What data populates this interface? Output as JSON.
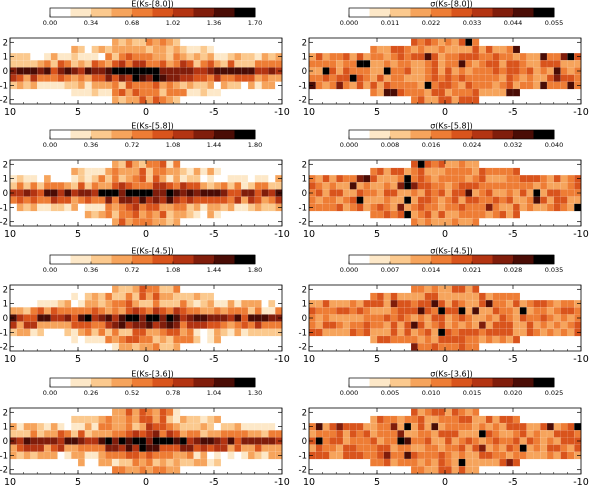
{
  "figure": {
    "background": "#ffffff",
    "colormap": [
      "#ffffff",
      "#fde8c8",
      "#fbc98e",
      "#f6a45c",
      "#ee7d35",
      "#d9541c",
      "#b33412",
      "#801d0b",
      "#4a0c05",
      "#000000"
    ]
  },
  "chart_data": [
    {
      "type": "heatmap",
      "panel": "left-1",
      "title": "E(Ks-[8.0])",
      "colorbar_ticks": [
        "0.00",
        "0.34",
        "0.68",
        "1.02",
        "1.36",
        "1.70"
      ],
      "vmin": 0.0,
      "vmax": 1.7,
      "xlim": [
        10,
        -10
      ],
      "ylim": [
        -2.3,
        2.3
      ],
      "x_ticks": [
        "10",
        "5",
        "0",
        "-5",
        "-10"
      ],
      "y_ticks": [
        "2",
        "1",
        "0",
        "-1",
        "-2"
      ],
      "xlabel": "",
      "ylabel": "",
      "grid": true,
      "kind": "extinction"
    },
    {
      "type": "heatmap",
      "panel": "right-1",
      "title": "σ(Ks-[8.0])",
      "colorbar_ticks": [
        "0.000",
        "0.011",
        "0.022",
        "0.033",
        "0.044",
        "0.055"
      ],
      "vmin": 0.0,
      "vmax": 0.055,
      "xlim": [
        10,
        -10
      ],
      "ylim": [
        -2.3,
        2.3
      ],
      "x_ticks": [
        "10",
        "5",
        "0",
        "-5",
        "-10"
      ],
      "y_ticks": [
        "2",
        "1",
        "0",
        "-1",
        "-2"
      ],
      "xlabel": "",
      "ylabel": "",
      "grid": true,
      "kind": "sigma"
    },
    {
      "type": "heatmap",
      "panel": "left-2",
      "title": "E(Ks-[5.8])",
      "colorbar_ticks": [
        "0.00",
        "0.36",
        "0.72",
        "1.08",
        "1.44",
        "1.80"
      ],
      "vmin": 0.0,
      "vmax": 1.8,
      "xlim": [
        10,
        -10
      ],
      "ylim": [
        -2.3,
        2.3
      ],
      "x_ticks": [
        "10",
        "5",
        "0",
        "-5",
        "-10"
      ],
      "y_ticks": [
        "2",
        "1",
        "0",
        "-1",
        "-2"
      ],
      "xlabel": "",
      "ylabel": "",
      "grid": true,
      "kind": "extinction"
    },
    {
      "type": "heatmap",
      "panel": "right-2",
      "title": "σ(Ks-[5.8])",
      "colorbar_ticks": [
        "0.000",
        "0.008",
        "0.016",
        "0.024",
        "0.032",
        "0.040"
      ],
      "vmin": 0.0,
      "vmax": 0.04,
      "xlim": [
        10,
        -10
      ],
      "ylim": [
        -2.3,
        2.3
      ],
      "x_ticks": [
        "10",
        "5",
        "0",
        "-5",
        "-10"
      ],
      "y_ticks": [
        "2",
        "1",
        "0",
        "-1",
        "-2"
      ],
      "xlabel": "",
      "ylabel": "",
      "grid": true,
      "kind": "sigma"
    },
    {
      "type": "heatmap",
      "panel": "left-3",
      "title": "E(Ks-[4.5])",
      "colorbar_ticks": [
        "0.00",
        "0.36",
        "0.72",
        "1.08",
        "1.44",
        "1.80"
      ],
      "vmin": 0.0,
      "vmax": 1.8,
      "xlim": [
        10,
        -10
      ],
      "ylim": [
        -2.3,
        2.3
      ],
      "x_ticks": [
        "10",
        "5",
        "0",
        "-5",
        "-10"
      ],
      "y_ticks": [
        "2",
        "1",
        "0",
        "-1",
        "-2"
      ],
      "xlabel": "",
      "ylabel": "",
      "grid": true,
      "kind": "extinction"
    },
    {
      "type": "heatmap",
      "panel": "right-3",
      "title": "σ(Ks-[4.5])",
      "colorbar_ticks": [
        "0.000",
        "0.007",
        "0.014",
        "0.021",
        "0.028",
        "0.035"
      ],
      "vmin": 0.0,
      "vmax": 0.035,
      "xlim": [
        10,
        -10
      ],
      "ylim": [
        -2.3,
        2.3
      ],
      "x_ticks": [
        "10",
        "5",
        "0",
        "-5",
        "-10"
      ],
      "y_ticks": [
        "2",
        "1",
        "0",
        "-1",
        "-2"
      ],
      "xlabel": "",
      "ylabel": "",
      "grid": true,
      "kind": "sigma"
    },
    {
      "type": "heatmap",
      "panel": "left-4",
      "title": "E(Ks-[3.6])",
      "colorbar_ticks": [
        "0.00",
        "0.26",
        "0.52",
        "0.78",
        "1.04",
        "1.30"
      ],
      "vmin": 0.0,
      "vmax": 1.3,
      "xlim": [
        10,
        -10
      ],
      "ylim": [
        -2.3,
        2.3
      ],
      "x_ticks": [
        "10",
        "5",
        "0",
        "-5",
        "-10"
      ],
      "y_ticks": [
        "2",
        "1",
        "0",
        "-1",
        "-2"
      ],
      "xlabel": "",
      "ylabel": "",
      "grid": true,
      "kind": "extinction"
    },
    {
      "type": "heatmap",
      "panel": "right-4",
      "title": "σ(Ks-[3.6])",
      "colorbar_ticks": [
        "0.000",
        "0.005",
        "0.010",
        "0.015",
        "0.020",
        "0.025"
      ],
      "vmin": 0.0,
      "vmax": 0.025,
      "xlim": [
        10,
        -10
      ],
      "ylim": [
        -2.3,
        2.3
      ],
      "x_ticks": [
        "10",
        "5",
        "0",
        "-5",
        "-10"
      ],
      "y_ticks": [
        "2",
        "1",
        "0",
        "-1",
        "-2"
      ],
      "xlabel": "",
      "ylabel": "",
      "grid": true,
      "kind": "sigma"
    }
  ]
}
